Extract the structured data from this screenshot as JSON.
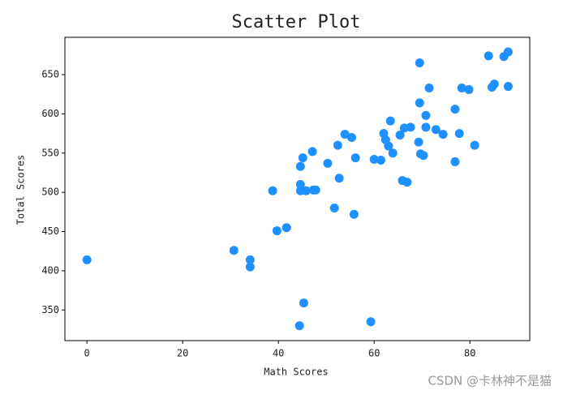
{
  "chart_data": {
    "type": "scatter",
    "title": "Scatter Plot",
    "x_label": "Math Scores",
    "y_label": "Total Scores",
    "color": "#1e90ff",
    "x": [
      0,
      30.7,
      34.1,
      34.1,
      38.8,
      39.7,
      41.7,
      44.4,
      44.6,
      45.1,
      44.6,
      44.6,
      45.8,
      45.3,
      47.1,
      47.3,
      47.8,
      50.3,
      51.7,
      52.4,
      52.7,
      53.9,
      55.3,
      55.8,
      56.1,
      59.3,
      60,
      61.4,
      62,
      62.4,
      63,
      63.4,
      63.9,
      65.4,
      65.9,
      66.3,
      66.9,
      67.6,
      69.5,
      69.5,
      69.3,
      69.7,
      70.3,
      70.8,
      70.8,
      71.5,
      72.9,
      74.4,
      76.9,
      76.9,
      77.8,
      78.3,
      79.8,
      81,
      83.9,
      84.6,
      85.1,
      87.1,
      88,
      88
    ],
    "values": [
      414,
      426,
      414,
      405,
      502,
      451,
      455,
      330,
      533,
      544,
      510,
      502,
      502,
      359,
      552,
      503,
      503,
      537,
      480,
      560,
      518,
      574,
      570,
      472,
      544,
      335,
      542,
      541,
      575,
      567,
      559,
      591,
      550,
      573,
      515,
      582,
      513,
      583,
      665,
      614,
      564,
      549,
      547,
      598,
      583,
      633,
      580,
      574,
      606,
      539,
      575,
      633,
      631,
      560,
      674,
      634,
      638,
      673,
      679,
      635
    ],
    "xlim": [
      -4.6,
      92.5
    ],
    "ylim": [
      311,
      697.6
    ],
    "xticks": [
      0,
      20,
      40,
      60,
      80
    ],
    "yticks": [
      350,
      400,
      450,
      500,
      550,
      600,
      650
    ]
  },
  "watermark": "CSDN @卡林神不是猫"
}
